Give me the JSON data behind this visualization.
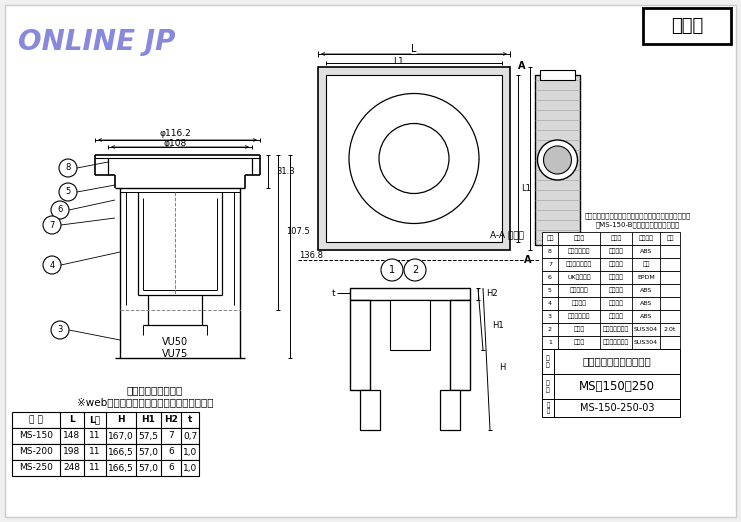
{
  "bg_color": "#f0f0f0",
  "white": "#ffffff",
  "title_text": "ONLINE JP",
  "title_color": "#8888dd",
  "sankouzu_text": "参考図",
  "main_drawing_title": "浅型トラップ詳細図",
  "warning_text": "※web図面の為、等縮尺ではございません。",
  "table_headers": [
    "品 番",
    "L",
    "L１",
    "H",
    "H1",
    "H2",
    "t"
  ],
  "table_rows": [
    [
      "MS-150",
      "148",
      "11",
      "167,0",
      "57,5",
      "7",
      "0,7"
    ],
    [
      "MS-200",
      "198",
      "11",
      "166,5",
      "57,0",
      "6",
      "1,0"
    ],
    [
      "MS-250",
      "248",
      "11",
      "166,5",
      "57,0",
      "6",
      "1,0"
    ]
  ],
  "parts_rows": [
    [
      "8",
      "防臭キャップ",
      "合成樹脂",
      "ABS",
      ""
    ],
    [
      "7",
      "スペリパッキン",
      "合成樹脂",
      "ＰＰ",
      ""
    ],
    [
      "6",
      "UKパッキン",
      "合成ゴム",
      "EPDM",
      ""
    ],
    [
      "5",
      "ロックネジ",
      "合成樹脂",
      "ABS",
      ""
    ],
    [
      "4",
      "フランジ",
      "合成樹脂",
      "ABS",
      ""
    ],
    [
      "3",
      "トラップ本体",
      "合成樹脂",
      "ABS",
      ""
    ],
    [
      "2",
      "フ　タ",
      "ステンレス鉱板",
      "SUS304",
      "2.0t"
    ],
    [
      "1",
      "本　体",
      "ステンレス鉱板",
      "SUS304",
      ""
    ]
  ],
  "parts_headers": [
    "番号",
    "部品名",
    "材質名",
    "材質記号",
    "備考"
  ],
  "product_name": "トラップ付排水ユニット",
  "product_number": "MS－150～250",
  "drawing_number": "MS-150-250-03",
  "note1": "＊排水ユニット蓋の番号は、サイズにより異なります。",
  "note2": "　MS-150-Bのフタはコの字型です。",
  "aa_text": "A-A 断面図",
  "dim_phi116": "φ116.2",
  "dim_phi108": "φ108",
  "dim_313": "31.3",
  "dim_1075": "107.5",
  "dim_1368": "136.8",
  "dim_vu50": "VU50",
  "dim_vu75": "VU75",
  "label_L": "L",
  "label_L1": "L1",
  "label_A": "A",
  "label_H": "H",
  "label_H1": "H1",
  "label_H2": "H2",
  "label_t": "t"
}
